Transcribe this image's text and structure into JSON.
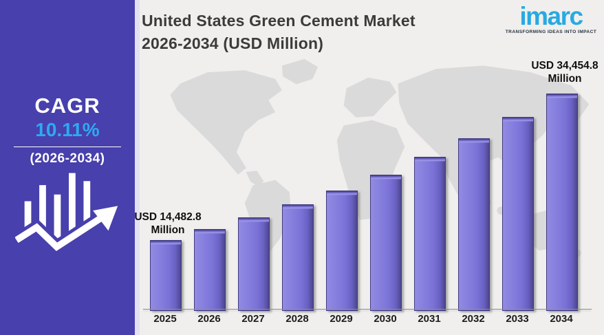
{
  "page": {
    "background": "#F0EFED"
  },
  "sidebar": {
    "background": "#4840AC",
    "cagr_label": "CAGR",
    "cagr_value": "10.11%",
    "cagr_value_color": "#2FA9F1",
    "cagr_period": "(2026-2034)",
    "growth_icon": "bar-chart-with-upward-arrow-icon"
  },
  "header": {
    "title_line1": "United States Green Cement Market",
    "title_line2": "2026-2034 (USD Million)",
    "title_color": "#3B3B3B"
  },
  "logo": {
    "text": "imarc",
    "tagline": "TRANSFORMING IDEAS INTO IMPACT",
    "color": "#29A9E1"
  },
  "chart_data": {
    "type": "bar",
    "title": "United States Green Cement Market 2026-2034 (USD Million)",
    "categories": [
      "2025",
      "2026",
      "2027",
      "2028",
      "2029",
      "2030",
      "2031",
      "2032",
      "2033",
      "2034"
    ],
    "values": [
      14482.8,
      15945.4,
      17557.5,
      19332.6,
      21287.1,
      23439.2,
      25808.9,
      28418.1,
      31291.2,
      34454.8
    ],
    "values_note": "Only 2025 and 2034 carry on-chart labels; intermediate bars estimated from the stated 10.11% CAGR",
    "data_labels": [
      {
        "category": "2025",
        "line1": "USD 14,482.8",
        "line2": "Million"
      },
      {
        "category": "2034",
        "line1": "USD 34,454.8",
        "line2": "Million"
      }
    ],
    "xlabel": "",
    "ylabel": "",
    "ylim": [
      5000,
      36000
    ],
    "grid": false,
    "legend": false,
    "bar_color": "#7C74D8",
    "bar_edge_color": "#3F3A7E",
    "background_motif": "world-map"
  }
}
